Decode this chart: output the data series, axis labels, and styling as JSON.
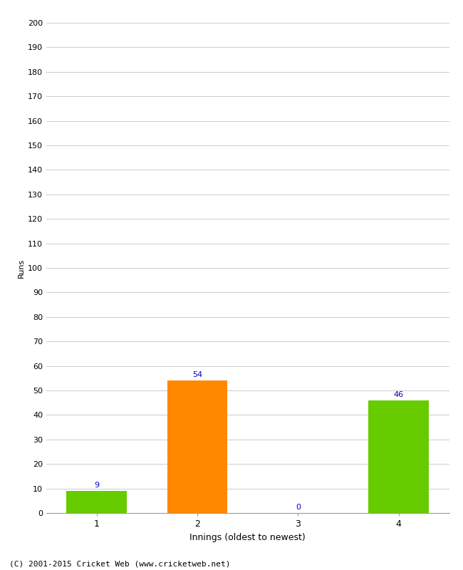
{
  "categories": [
    "1",
    "2",
    "3",
    "4"
  ],
  "values": [
    9,
    54,
    0,
    46
  ],
  "bar_colors": [
    "#66cc00",
    "#ff8800",
    "#66cc00",
    "#66cc00"
  ],
  "xlabel": "Innings (oldest to newest)",
  "ylabel": "Runs",
  "ylim": [
    0,
    200
  ],
  "yticks": [
    0,
    10,
    20,
    30,
    40,
    50,
    60,
    70,
    80,
    90,
    100,
    110,
    120,
    130,
    140,
    150,
    160,
    170,
    180,
    190,
    200
  ],
  "label_color": "#0000cc",
  "label_fontsize": 8,
  "footer": "(C) 2001-2015 Cricket Web (www.cricketweb.net)",
  "background_color": "#ffffff",
  "grid_color": "#cccccc",
  "bar_width": 0.6
}
